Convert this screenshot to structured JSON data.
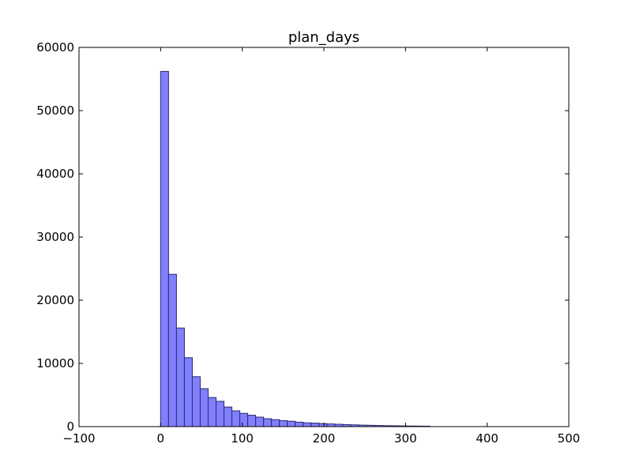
{
  "chart_data": {
    "type": "bar",
    "title": "plan_days",
    "xlabel": "",
    "ylabel": "",
    "xlim": [
      -100,
      500
    ],
    "ylim": [
      0,
      60000
    ],
    "x_ticks": [
      "−100",
      "0",
      "100",
      "200",
      "300",
      "400",
      "500"
    ],
    "y_ticks": [
      "0",
      "10000",
      "20000",
      "30000",
      "40000",
      "50000",
      "60000"
    ],
    "grid": false,
    "bar_color": "#8080ff",
    "bar_edge_color": "#2a2a6a",
    "bin_width": 9.7,
    "bins": [
      {
        "x0": 0,
        "count": 56200
      },
      {
        "x0": 9.7,
        "count": 24100
      },
      {
        "x0": 19.4,
        "count": 15600
      },
      {
        "x0": 29.1,
        "count": 10900
      },
      {
        "x0": 38.8,
        "count": 7900
      },
      {
        "x0": 48.5,
        "count": 6000
      },
      {
        "x0": 58.2,
        "count": 4600
      },
      {
        "x0": 67.9,
        "count": 4000
      },
      {
        "x0": 77.6,
        "count": 3100
      },
      {
        "x0": 87.3,
        "count": 2500
      },
      {
        "x0": 97.0,
        "count": 2100
      },
      {
        "x0": 106.7,
        "count": 1800
      },
      {
        "x0": 116.4,
        "count": 1500
      },
      {
        "x0": 126.1,
        "count": 1250
      },
      {
        "x0": 135.8,
        "count": 1100
      },
      {
        "x0": 145.5,
        "count": 950
      },
      {
        "x0": 155.2,
        "count": 850
      },
      {
        "x0": 164.9,
        "count": 700
      },
      {
        "x0": 174.6,
        "count": 600
      },
      {
        "x0": 184.3,
        "count": 550
      },
      {
        "x0": 194.0,
        "count": 480
      },
      {
        "x0": 203.7,
        "count": 420
      },
      {
        "x0": 213.4,
        "count": 370
      },
      {
        "x0": 223.1,
        "count": 320
      },
      {
        "x0": 232.8,
        "count": 280
      },
      {
        "x0": 242.5,
        "count": 240
      },
      {
        "x0": 252.2,
        "count": 210
      },
      {
        "x0": 261.9,
        "count": 180
      },
      {
        "x0": 271.6,
        "count": 150
      },
      {
        "x0": 281.3,
        "count": 130
      },
      {
        "x0": 291.0,
        "count": 110
      },
      {
        "x0": 300.7,
        "count": 95
      },
      {
        "x0": 310.4,
        "count": 80
      },
      {
        "x0": 320.1,
        "count": 65
      }
    ]
  }
}
